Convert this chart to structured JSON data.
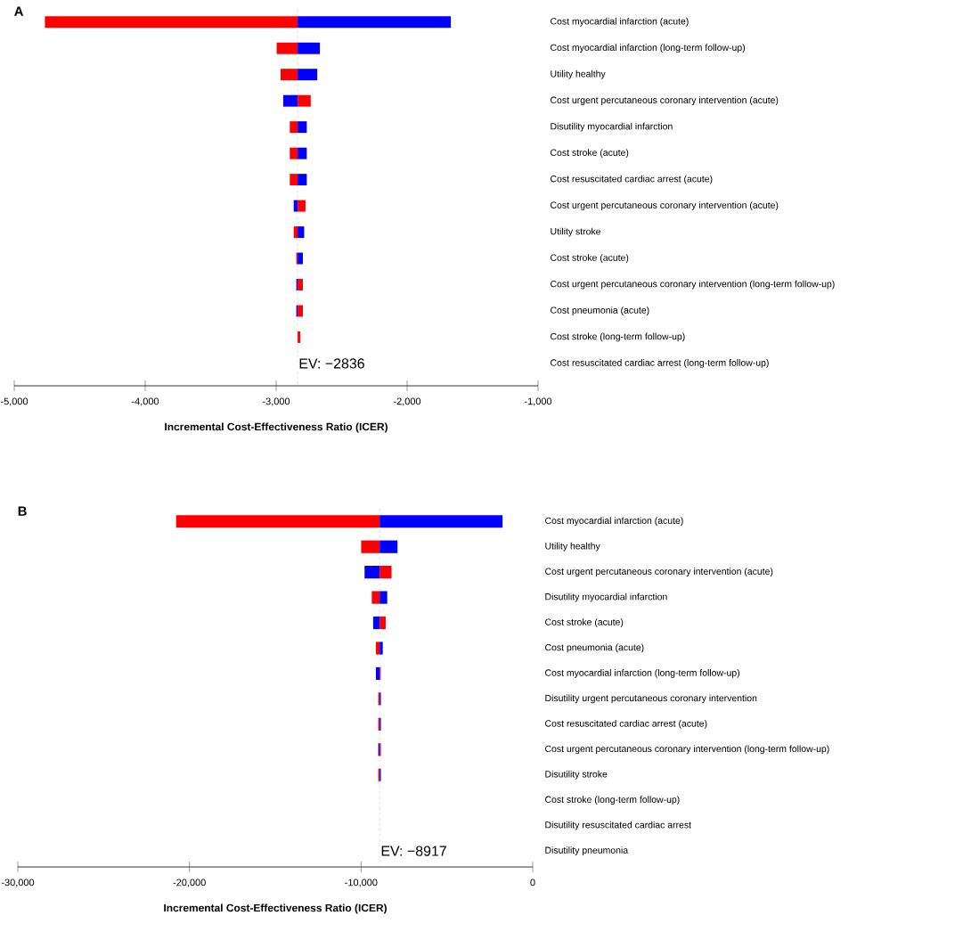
{
  "chart_data": [
    {
      "type": "bar",
      "orientation": "horizontal",
      "title": "A",
      "xlabel": "Incremental Cost-Effectiveness Ratio (ICER)",
      "categories": [
        "Cost myocardial infarction (acute)",
        "Cost myocardial infarction (long-term follow-up)",
        "Utility healthy",
        "Cost urgent percutaneous coronary intervention (acute)",
        "Disutility myocardial infarction",
        "Cost stroke (acute)",
        "Cost resuscitated cardiac arrest (acute)",
        "Cost urgent percutaneous coronary intervention (acute)",
        "Utility stroke",
        "Cost stroke (acute)",
        "Cost urgent percutaneous coronary intervention (long-term follow-up)",
        "Cost pneumonia (acute)",
        "Cost stroke (long-term follow-up)",
        "Cost resuscitated cardiac arrest (long-term follow-up)"
      ],
      "series": [
        {
          "color": "#ff0000",
          "base": [
            -2836,
            -2836,
            -2836,
            -2836,
            -2836,
            -2836,
            -2836,
            -2836,
            -2836,
            -2836,
            -2836,
            -2836,
            -2836,
            null
          ],
          "values": [
            -1930,
            -160,
            -130,
            100,
            -60,
            -60,
            -60,
            60,
            -30,
            -10,
            40,
            40,
            20,
            null
          ]
        },
        {
          "color": "#0000ff",
          "base": [
            -2836,
            -2836,
            -2836,
            -2836,
            -2836,
            -2836,
            -2836,
            -2836,
            -2836,
            -2836,
            -2836,
            -2836,
            null,
            null
          ],
          "values": [
            1170,
            170,
            150,
            -110,
            70,
            70,
            70,
            -30,
            50,
            40,
            -10,
            -10,
            null,
            null
          ]
        }
      ],
      "xlim": [
        -5000,
        -1000
      ],
      "xticks": [
        {
          "value": -5000,
          "label": "-5,000"
        },
        {
          "value": -4000,
          "label": "-4,000"
        },
        {
          "value": -3000,
          "label": "-3,000"
        },
        {
          "value": -2000,
          "label": "-2,000"
        },
        {
          "value": -1000,
          "label": "-1,000"
        }
      ],
      "ref_lines": [
        {
          "axis": "x",
          "value": -2836,
          "label": "EV: −2836",
          "color": "#aaaaaa",
          "line_style": "dashed"
        }
      ]
    },
    {
      "type": "bar",
      "orientation": "horizontal",
      "title": "B",
      "xlabel": "Incremental Cost-Effectiveness Ratio (ICER)",
      "categories": [
        "Cost myocardial infarction (acute)",
        "Utility healthy",
        "Cost urgent percutaneous coronary intervention (acute)",
        "Disutility myocardial infarction",
        "Cost stroke (acute)",
        "Cost pneumonia (acute)",
        "Cost myocardial infarction (long-term follow-up)",
        "Disutility urgent percutaneous coronary intervention",
        "Cost resuscitated cardiac arrest (acute)",
        "Cost urgent percutaneous coronary intervention (long-term follow-up)",
        "Disutility stroke",
        "Cost stroke (long-term follow-up)",
        "Disutility resuscitated cardiac arrest",
        "Disutility pneumonia"
      ],
      "series": [
        {
          "color": "#ff0000",
          "base": [
            -8917,
            -8917,
            -8917,
            -8917,
            -8917,
            -8917,
            -8917,
            -8917,
            -8917,
            -8917,
            -8917,
            null,
            null,
            null
          ],
          "values": [
            -11860,
            -1080,
            690,
            -460,
            350,
            -220,
            60,
            -80,
            -80,
            70,
            -80,
            null,
            null,
            null
          ]
        },
        {
          "color": "#0000ff",
          "base": [
            -8917,
            -8917,
            -8917,
            -8917,
            -8917,
            -8917,
            -8917,
            -8917,
            -8917,
            -8917,
            -8917,
            null,
            null,
            null
          ],
          "values": [
            7160,
            1040,
            -880,
            440,
            -380,
            180,
            -220,
            70,
            70,
            -80,
            70,
            null,
            null,
            null
          ]
        }
      ],
      "xlim": [
        -30000,
        0
      ],
      "xticks": [
        {
          "value": -30000,
          "label": "-30,000"
        },
        {
          "value": -20000,
          "label": "-20,000"
        },
        {
          "value": -10000,
          "label": "-10,000"
        },
        0
      ],
      "ref_lines": [
        {
          "axis": "x",
          "value": -8917,
          "label": "EV: −8917",
          "color": "#aaaaaa",
          "line_style": "dashed"
        }
      ]
    }
  ]
}
